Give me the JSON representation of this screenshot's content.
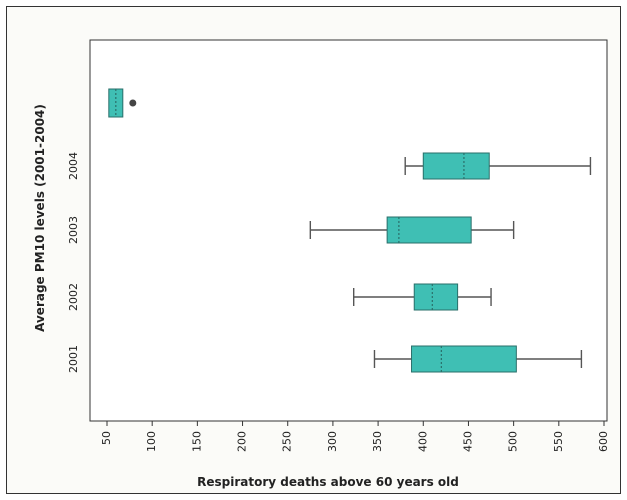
{
  "chart_data": {
    "type": "boxplot",
    "orientation": "horizontal",
    "xlabel": "Respiratory deaths above 60 years old",
    "ylabel": "Average PM10 levels (2001-2004)",
    "xlim": [
      35,
      600
    ],
    "x_ticks": [
      50,
      100,
      150,
      200,
      250,
      300,
      350,
      400,
      450,
      500,
      550,
      600
    ],
    "grid": false,
    "legend": "none",
    "colors": {
      "box": "#3fbfb4",
      "box_edge": "#2a6f6a",
      "whisker": "#555555",
      "outlier": "#444444"
    },
    "series": [
      {
        "name": "2001",
        "whisker_low": 346,
        "q1": 387,
        "median": 420,
        "mean": 420,
        "q3": 503,
        "whisker_high": 575,
        "outliers": []
      },
      {
        "name": "2002",
        "whisker_low": 323,
        "q1": 390,
        "median": 410,
        "mean": 410,
        "q3": 438,
        "whisker_high": 475,
        "outliers": []
      },
      {
        "name": "2003",
        "whisker_low": 275,
        "q1": 360,
        "median": 373,
        "mean": 373,
        "q3": 453,
        "whisker_high": 500,
        "outliers": []
      },
      {
        "name": "2004",
        "whisker_low": 380,
        "q1": 400,
        "median": 445,
        "mean": 445,
        "q3": 473,
        "whisker_high": 585,
        "outliers": []
      },
      {
        "name": "",
        "whisker_low": 52,
        "q1": 52,
        "median": 58,
        "mean": 58,
        "q3": 64,
        "whisker_high": 64,
        "outliers": [
          72
        ]
      }
    ]
  }
}
